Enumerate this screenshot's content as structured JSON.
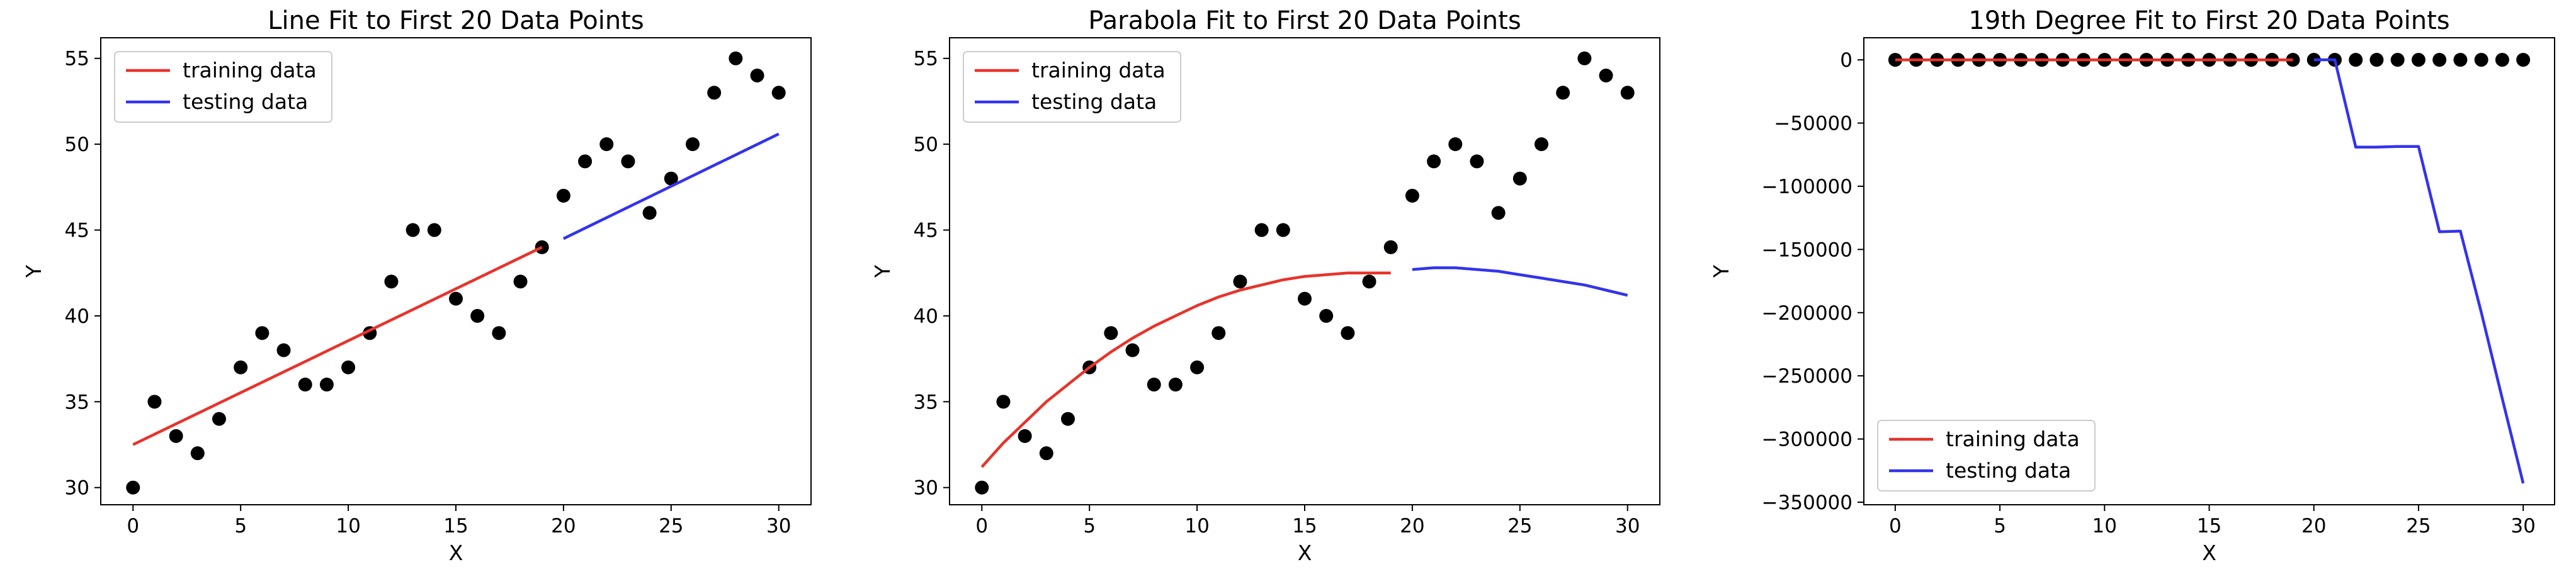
{
  "charts": [
    {
      "type": "scatter",
      "title": "Line Fit to First 20 Data Points",
      "xlabel": "X",
      "ylabel": "Y",
      "xlim": [
        -1.5,
        31.5
      ],
      "ylim": [
        29.0,
        56.2
      ],
      "xticks": [
        0,
        5,
        10,
        15,
        20,
        25,
        30
      ],
      "yticks": [
        30,
        35,
        40,
        45,
        50,
        55
      ],
      "yticklabels": [
        "30",
        "35",
        "40",
        "45",
        "50",
        "55"
      ],
      "legend_loc": "upper-left",
      "points": {
        "x": [
          0,
          1,
          2,
          3,
          4,
          5,
          6,
          7,
          8,
          9,
          10,
          11,
          12,
          13,
          14,
          15,
          16,
          17,
          18,
          19,
          20,
          21,
          22,
          23,
          24,
          25,
          26,
          27,
          28,
          29,
          30
        ],
        "y": [
          30,
          35,
          33,
          32,
          34,
          37,
          39,
          38,
          36,
          36,
          37,
          39,
          42,
          45,
          45,
          41,
          40,
          39,
          42,
          44,
          47,
          49,
          50,
          49,
          46,
          48,
          50,
          53,
          55,
          54,
          53
        ]
      },
      "series": [
        {
          "name": "training data",
          "color": "#e8332a",
          "x": [
            0,
            19
          ],
          "y": [
            32.5,
            44.0
          ]
        },
        {
          "name": "testing data",
          "color": "#3333ee",
          "x": [
            20,
            30
          ],
          "y": [
            44.5,
            50.6
          ]
        }
      ]
    },
    {
      "type": "scatter",
      "title": "Parabola Fit to First 20 Data Points",
      "xlabel": "X",
      "ylabel": "Y",
      "xlim": [
        -1.5,
        31.5
      ],
      "ylim": [
        29.0,
        56.2
      ],
      "xticks": [
        0,
        5,
        10,
        15,
        20,
        25,
        30
      ],
      "yticks": [
        30,
        35,
        40,
        45,
        50,
        55
      ],
      "yticklabels": [
        "30",
        "35",
        "40",
        "45",
        "50",
        "55"
      ],
      "legend_loc": "upper-left",
      "points": {
        "x": [
          0,
          1,
          2,
          3,
          4,
          5,
          6,
          7,
          8,
          9,
          10,
          11,
          12,
          13,
          14,
          15,
          16,
          17,
          18,
          19,
          20,
          21,
          22,
          23,
          24,
          25,
          26,
          27,
          28,
          29,
          30
        ],
        "y": [
          30,
          35,
          33,
          32,
          34,
          37,
          39,
          38,
          36,
          36,
          37,
          39,
          42,
          45,
          45,
          41,
          40,
          39,
          42,
          44,
          47,
          49,
          50,
          49,
          46,
          48,
          50,
          53,
          55,
          54,
          53
        ]
      },
      "series": [
        {
          "name": "training data",
          "color": "#e8332a",
          "x": [
            0,
            1,
            2,
            3,
            4,
            5,
            6,
            7,
            8,
            9,
            10,
            11,
            12,
            13,
            14,
            15,
            16,
            17,
            18,
            19
          ],
          "y": [
            31.2,
            32.6,
            33.8,
            35.0,
            36.0,
            37.0,
            37.9,
            38.7,
            39.4,
            40.0,
            40.6,
            41.1,
            41.5,
            41.8,
            42.1,
            42.3,
            42.4,
            42.5,
            42.5,
            42.5
          ]
        },
        {
          "name": "testing data",
          "color": "#3333ee",
          "x": [
            20,
            21,
            22,
            23,
            24,
            25,
            26,
            27,
            28,
            29,
            30
          ],
          "y": [
            42.7,
            42.8,
            42.8,
            42.7,
            42.6,
            42.4,
            42.2,
            42.0,
            41.8,
            41.5,
            41.2
          ]
        }
      ]
    },
    {
      "type": "scatter",
      "title": "19th Degree Fit to First 20 Data Points",
      "xlabel": "X",
      "ylabel": "Y",
      "xlim": [
        -1.5,
        31.5
      ],
      "ylim": [
        -352000,
        17500
      ],
      "xticks": [
        0,
        5,
        10,
        15,
        20,
        25,
        30
      ],
      "yticks": [
        0,
        -50000,
        -100000,
        -150000,
        -200000,
        -250000,
        -300000,
        -350000
      ],
      "yticklabels": [
        "0",
        "−50000",
        "−100000",
        "−150000",
        "−200000",
        "−250000",
        "−300000",
        "−350000"
      ],
      "legend_loc": "lower-left",
      "points": {
        "x": [
          0,
          1,
          2,
          3,
          4,
          5,
          6,
          7,
          8,
          9,
          10,
          11,
          12,
          13,
          14,
          15,
          16,
          17,
          18,
          19,
          20,
          21,
          22,
          23,
          24,
          25,
          26,
          27,
          28,
          29,
          30
        ],
        "y": [
          30,
          35,
          33,
          32,
          34,
          37,
          39,
          38,
          36,
          36,
          37,
          39,
          42,
          45,
          45,
          41,
          40,
          39,
          42,
          44,
          47,
          49,
          50,
          49,
          46,
          48,
          50,
          53,
          55,
          54,
          53
        ]
      },
      "series": [
        {
          "name": "training data",
          "color": "#e8332a",
          "x": [
            0,
            1,
            2,
            3,
            4,
            5,
            6,
            7,
            8,
            9,
            10,
            11,
            12,
            13,
            14,
            15,
            16,
            17,
            18,
            19
          ],
          "y": [
            30,
            35,
            33,
            32,
            34,
            37,
            39,
            38,
            36,
            36,
            37,
            39,
            42,
            45,
            45,
            41,
            40,
            39,
            42,
            44
          ]
        },
        {
          "name": "testing data",
          "color": "#3333ee",
          "x": [
            20,
            21,
            22,
            23,
            24,
            25,
            26,
            27,
            28,
            29,
            30
          ],
          "y": [
            50,
            50,
            -69000,
            -69000,
            -68500,
            -68500,
            -136000,
            -135500,
            -200000,
            -268000,
            -335000
          ]
        }
      ]
    }
  ]
}
